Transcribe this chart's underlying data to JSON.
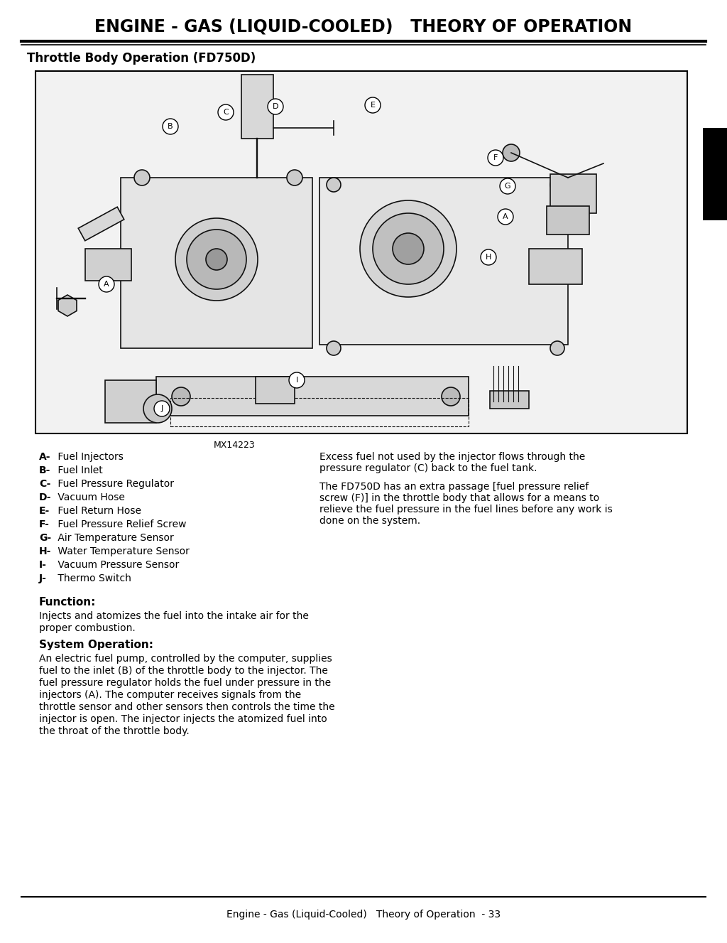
{
  "title": "ENGINE - GAS (LIQUID-COOLED)   THEORY OF OPERATION",
  "section_title": "Throttle Body Operation (FD750D)",
  "image_credit": "MX14223",
  "bg_color": "#ffffff",
  "black_tab_color": "#000000",
  "labels_left": [
    "A- Fuel Injectors",
    "B- Fuel Inlet",
    "C- Fuel Pressure Regulator",
    "D- Vacuum Hose",
    "E- Fuel Return Hose",
    "F- Fuel Pressure Relief Screw",
    "G- Air Temperature Sensor",
    "H- Water Temperature Sensor",
    "I- Vacuum Pressure Sensor",
    "J- Thermo Switch"
  ],
  "p1_lines": [
    "Excess fuel not used by the injector flows through the",
    "pressure regulator (C) back to the fuel tank."
  ],
  "p2_lines": [
    "The FD750D has an extra passage [fuel pressure relief",
    "screw (F)] in the throttle body that allows for a means to",
    "relieve the fuel pressure in the fuel lines before any work is",
    "done on the system."
  ],
  "function_label": "Function:",
  "function_lines": [
    "Injects and atomizes the fuel into the intake air for the",
    "proper combustion."
  ],
  "system_op_label": "System Operation:",
  "system_op_lines": [
    "An electric fuel pump, controlled by the computer, supplies",
    "fuel to the inlet (B) of the throttle body to the injector. The",
    "fuel pressure regulator holds the fuel under pressure in the",
    "injectors (A). The computer receives signals from the",
    "throttle sensor and other sensors then controls the time the",
    "injector is open. The injector injects the atomized fuel into",
    "the throat of the throttle body."
  ],
  "footer_text": "Engine - Gas (Liquid-Cooled)   Theory of Operation  - 33"
}
